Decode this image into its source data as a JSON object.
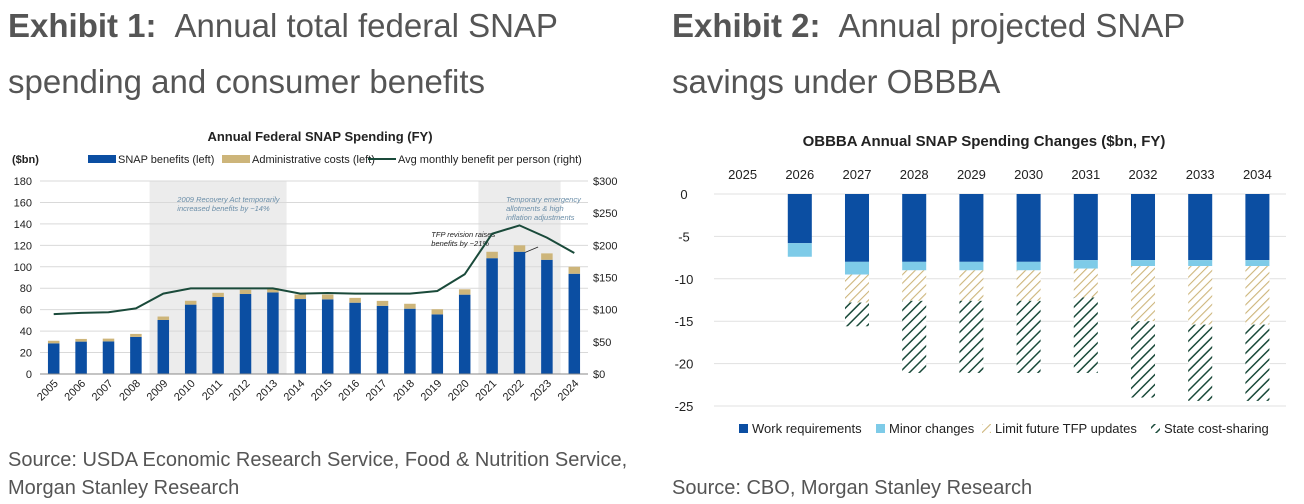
{
  "exhibit1": {
    "label": "Exhibit 1:",
    "title": "Annual total federal SNAP spending and consumer benefits",
    "source": "Source: USDA Economic Research Service, Food & Nutrition Service, Morgan Stanley Research"
  },
  "exhibit2": {
    "label": "Exhibit 2:",
    "title": "Annual projected SNAP savings under OBBBA",
    "source": "Source: CBO, Morgan Stanley Research"
  },
  "colors": {
    "dark_blue": "#0b4ea2",
    "light_blue": "#7ecbe8",
    "tan": "#cdb57a",
    "dark_green": "#1a4a3a",
    "shade": "#ececec"
  },
  "chart_data": [
    {
      "type": "bar",
      "title": "Annual Federal SNAP Spending (FY)",
      "ylabel": "($bn)",
      "categories": [
        "2005",
        "2006",
        "2007",
        "2008",
        "2009",
        "2010",
        "2011",
        "2012",
        "2013",
        "2014",
        "2015",
        "2016",
        "2017",
        "2018",
        "2019",
        "2020",
        "2021",
        "2022",
        "2023",
        "2024"
      ],
      "series": [
        {
          "name": "SNAP benefits (left)",
          "values": [
            28.6,
            30.2,
            30.4,
            34.6,
            50.4,
            64.7,
            71.8,
            74.6,
            76.1,
            69.9,
            69.6,
            66.5,
            63.6,
            60.9,
            55.6,
            74.0,
            108.0,
            114.0,
            106.5,
            93.5
          ]
        },
        {
          "name": "Administrative costs (left)",
          "values": [
            2.4,
            2.5,
            2.6,
            2.8,
            3.2,
            3.6,
            3.9,
            3.9,
            4.0,
            4.2,
            4.5,
            4.5,
            4.6,
            4.6,
            4.8,
            5.0,
            6.0,
            6.0,
            6.0,
            6.5
          ]
        },
        {
          "name": "Avg monthly benefit per person (right)",
          "axis": "right",
          "values": [
            93,
            95,
            96,
            102,
            125,
            133,
            133,
            133,
            133,
            125,
            126,
            125,
            125,
            125,
            129,
            155,
            218,
            231,
            212,
            188
          ]
        }
      ],
      "ylim": [
        0,
        180
      ],
      "yticks": [
        0,
        20,
        40,
        60,
        80,
        100,
        120,
        140,
        160,
        180
      ],
      "y2lim": [
        0,
        300
      ],
      "y2ticks": [
        "$0",
        "$50",
        "$100",
        "$150",
        "$200",
        "$250",
        "$300"
      ],
      "annotations": [
        "2009 Recovery Act temporarily increased benefits by ~14%",
        "Temporary emergency allotments & high inflation adjustments",
        "TFP revision raises benefits by ~21%"
      ],
      "shaded_ranges": [
        [
          "2009",
          "2013"
        ],
        [
          "2021",
          "2023"
        ]
      ],
      "legend": "top",
      "grid": true
    },
    {
      "type": "bar",
      "stacked": true,
      "title": "OBBBA Annual SNAP Spending Changes ($bn, FY)",
      "categories": [
        "2025",
        "2026",
        "2027",
        "2028",
        "2029",
        "2030",
        "2031",
        "2032",
        "2033",
        "2034"
      ],
      "series": [
        {
          "name": "Work requirements",
          "values": [
            0,
            -5.8,
            -8.0,
            -8.0,
            -8.0,
            -8.0,
            -7.8,
            -7.8,
            -7.8,
            -7.8
          ]
        },
        {
          "name": "Minor changes",
          "values": [
            0,
            -1.6,
            -1.5,
            -1.0,
            -1.0,
            -1.0,
            -1.0,
            -0.7,
            -0.7,
            -0.7
          ]
        },
        {
          "name": "Limit future TFP updates",
          "values": [
            0,
            0,
            -3.3,
            -3.6,
            -3.6,
            -3.6,
            -3.4,
            -6.5,
            -6.9,
            -6.9
          ]
        },
        {
          "name": "State cost-sharing",
          "values": [
            0,
            0,
            -2.8,
            -8.5,
            -8.5,
            -8.5,
            -8.9,
            -9.0,
            -9.0,
            -9.0
          ]
        }
      ],
      "ylim": [
        -25,
        0
      ],
      "yticks": [
        0,
        -5,
        -10,
        -15,
        -20,
        -25
      ],
      "legend": "bottom",
      "grid": true
    }
  ]
}
